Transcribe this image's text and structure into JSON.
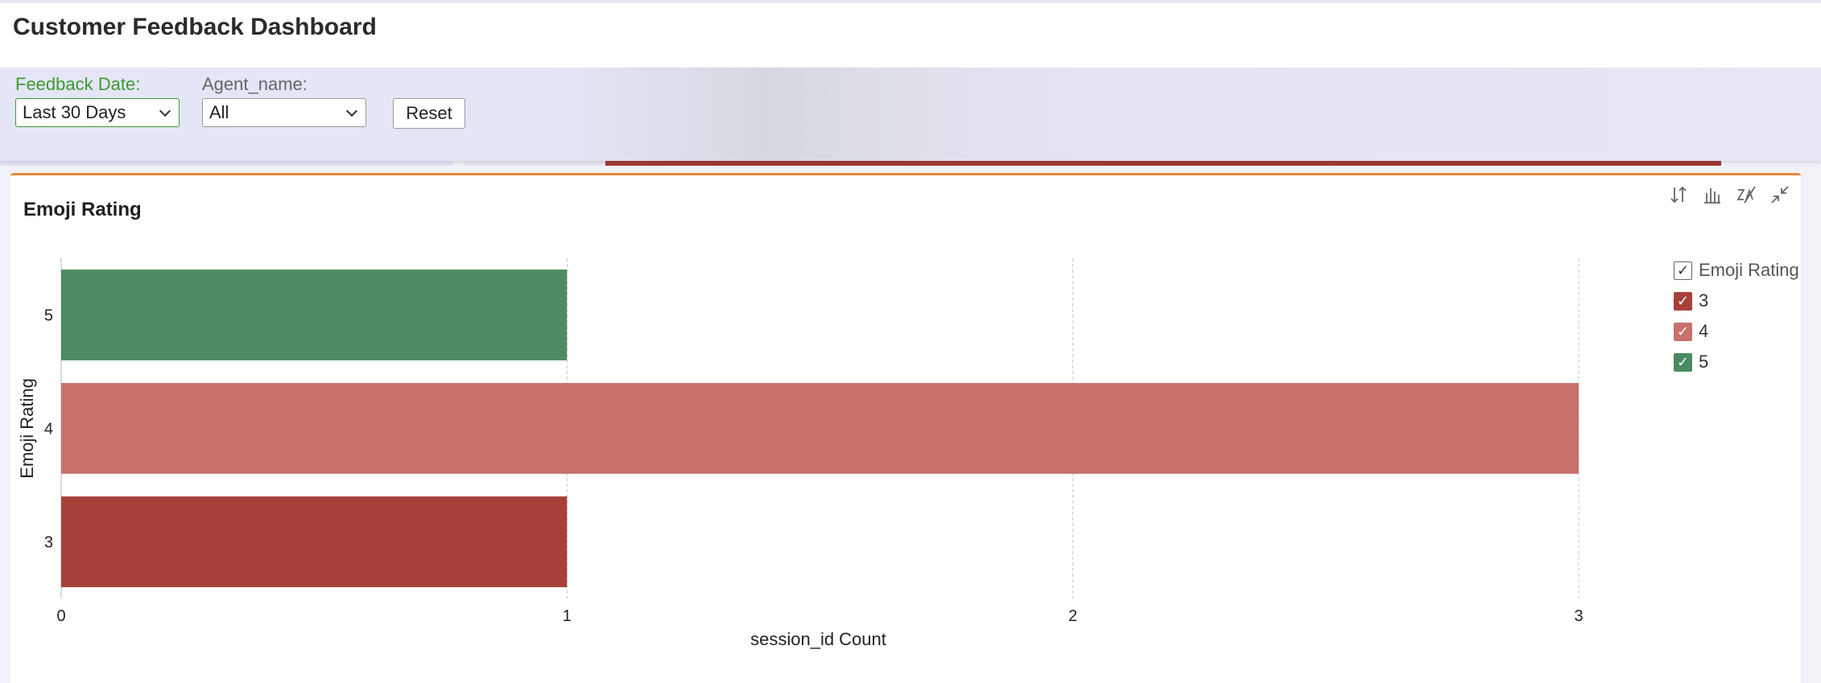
{
  "header": {
    "title": "Customer Feedback Dashboard"
  },
  "filters": {
    "feedback_date_label": "Feedback Date:",
    "feedback_date_value": "Last 30 Days",
    "agent_label": "Agent_name:",
    "agent_value": "All",
    "reset_label": "Reset"
  },
  "panel": {
    "title": "Emoji Rating",
    "tools": [
      "sort-icon",
      "bar-chart-icon",
      "chart-type-icon",
      "collapse-icon"
    ]
  },
  "legend": {
    "title": "Emoji Rating",
    "items": [
      {
        "label": "3",
        "color": "#a8403a",
        "checked": true
      },
      {
        "label": "4",
        "color": "#c7706c",
        "checked": true
      },
      {
        "label": "5",
        "color": "#4a8a60",
        "checked": true
      }
    ]
  },
  "chart_data": {
    "type": "bar",
    "orientation": "horizontal",
    "categories": [
      "5",
      "4",
      "3"
    ],
    "values": [
      1,
      3,
      1
    ],
    "colors": [
      "#4e8a62",
      "#c7706c",
      "#a8403a"
    ],
    "xlabel": "session_id Count",
    "ylabel": "Emoji Rating",
    "xlim": [
      0,
      3
    ],
    "xticks": [
      "0",
      "1",
      "2",
      "3"
    ],
    "grid": true,
    "legend_position": "right"
  }
}
